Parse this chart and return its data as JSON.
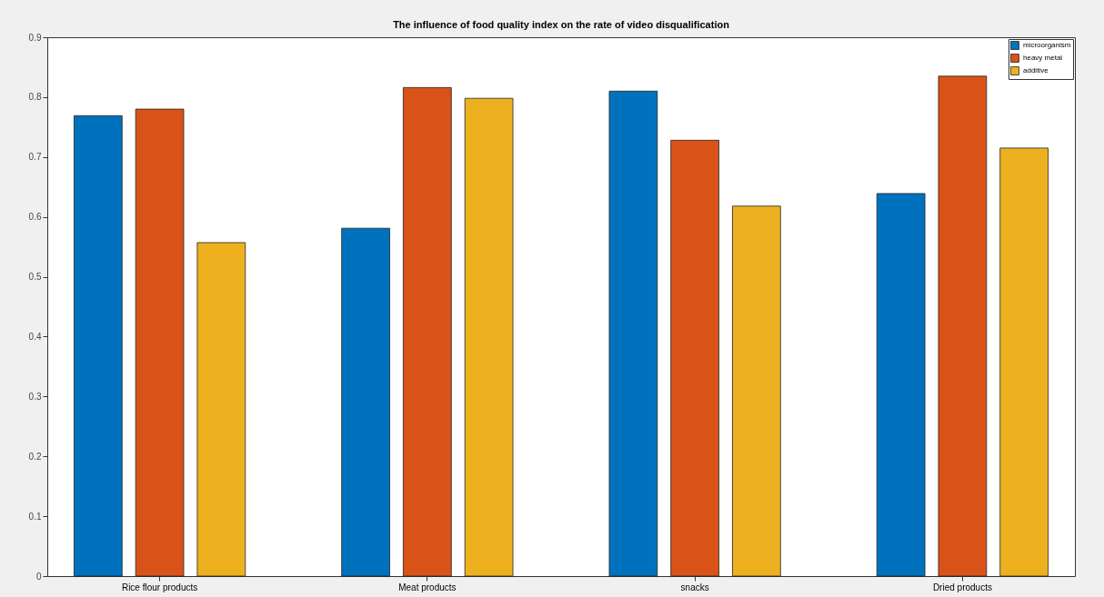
{
  "chart_data": {
    "type": "bar",
    "title": "The influence of food quality index on the rate of video disqualification",
    "categories": [
      "Rice flour products",
      "Meat products",
      "snacks",
      "Dried products"
    ],
    "series": [
      {
        "name": "microorganism",
        "color": "#0072bd",
        "values": [
          0.769,
          0.581,
          0.81,
          0.639
        ]
      },
      {
        "name": "heavy metal",
        "color": "#d95319",
        "values": [
          0.78,
          0.816,
          0.728,
          0.835
        ]
      },
      {
        "name": "additive",
        "color": "#edb120",
        "values": [
          0.557,
          0.798,
          0.618,
          0.715
        ]
      }
    ],
    "ylim": [
      0,
      0.9
    ],
    "yticks": [
      0,
      0.1,
      0.2,
      0.3,
      0.4,
      0.5,
      0.6,
      0.7,
      0.8,
      0.9
    ],
    "grid": false,
    "legend": "top right"
  }
}
